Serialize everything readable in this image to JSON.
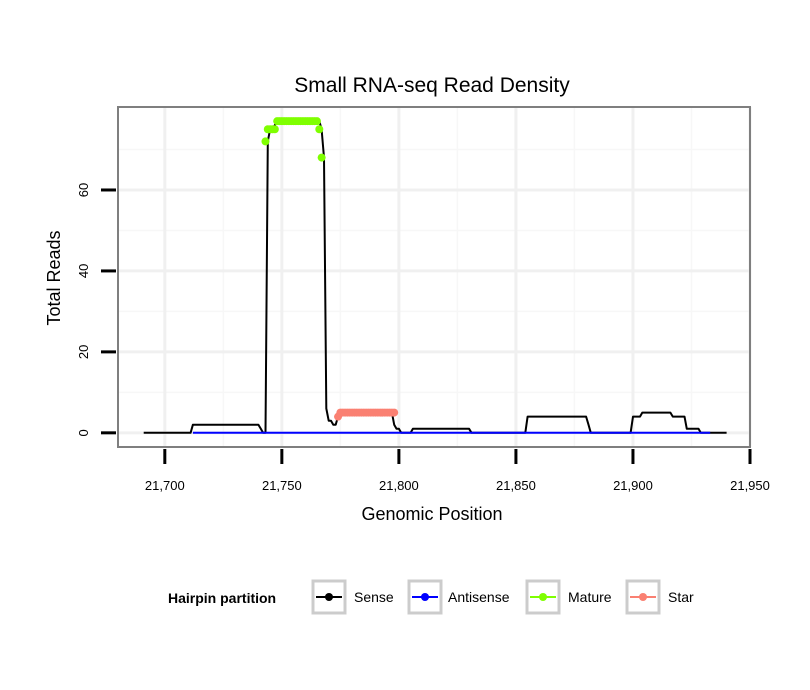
{
  "chart_data": {
    "type": "line",
    "title": "Small RNA-seq Read Density",
    "xlabel": "Genomic Position",
    "ylabel": "Total Reads",
    "xlim": [
      21680,
      21950
    ],
    "ylim": [
      -3.5,
      80.5
    ],
    "x_ticks": [
      21700,
      21750,
      21800,
      21850,
      21900,
      21950
    ],
    "x_tick_labels": [
      "21,700",
      "21,750",
      "21,800",
      "21,850",
      "21,900",
      "21,950"
    ],
    "y_ticks": [
      0,
      20,
      40,
      60
    ],
    "y_tick_labels": [
      "0",
      "20",
      "40",
      "60"
    ],
    "grid": true,
    "legend": {
      "title": "Hairpin partition",
      "placement": "bottom",
      "entries": [
        {
          "name": "Sense",
          "color": "#000000"
        },
        {
          "name": "Antisense",
          "color": "#0000ff"
        },
        {
          "name": "Mature",
          "color": "#7fff00"
        },
        {
          "name": "Star",
          "color": "#fa8072"
        }
      ]
    },
    "series": [
      {
        "name": "Sense",
        "color": "#000000",
        "mode": "line",
        "x": [
          21691,
          21711,
          21712,
          21740,
          21741,
          21742,
          21743,
          21744,
          21745,
          21746,
          21747,
          21748,
          21766,
          21767,
          21768,
          21769,
          21770,
          21771,
          21772,
          21773,
          21774,
          21775,
          21797,
          21798,
          21799,
          21800,
          21801,
          21805,
          21806,
          21830,
          21831,
          21854,
          21855,
          21880,
          21881,
          21882,
          21899,
          21900,
          21903,
          21904,
          21916,
          21917,
          21922,
          21923,
          21928,
          21929,
          21940
        ],
        "y": [
          0,
          0,
          2,
          2,
          1,
          0,
          0,
          72,
          75,
          75,
          76,
          77,
          77,
          75,
          68,
          6,
          3,
          3,
          2,
          2,
          4,
          5,
          5,
          2,
          1,
          1,
          0,
          0,
          1,
          1,
          0,
          0,
          4,
          4,
          2,
          0,
          0,
          4,
          4,
          5,
          5,
          4,
          4,
          1,
          1,
          0,
          0
        ]
      },
      {
        "name": "Antisense",
        "color": "#0000ff",
        "mode": "line",
        "x": [
          21712,
          21933
        ],
        "y": [
          0,
          0
        ]
      },
      {
        "name": "Mature",
        "color": "#7fff00",
        "mode": "markers",
        "x": [
          21743,
          21744,
          21745,
          21746,
          21747,
          21748,
          21749,
          21750,
          21751,
          21752,
          21753,
          21754,
          21755,
          21756,
          21757,
          21758,
          21759,
          21760,
          21761,
          21762,
          21763,
          21764,
          21765,
          21766,
          21767
        ],
        "y": [
          72,
          75,
          75,
          75,
          75,
          77,
          77,
          77,
          77,
          77,
          77,
          77,
          77,
          77,
          77,
          77,
          77,
          77,
          77,
          77,
          77,
          77,
          77,
          75,
          68
        ]
      },
      {
        "name": "Star",
        "color": "#fa8072",
        "mode": "markers",
        "x": [
          21774,
          21775,
          21776,
          21777,
          21778,
          21779,
          21780,
          21781,
          21782,
          21783,
          21784,
          21785,
          21786,
          21787,
          21788,
          21789,
          21790,
          21791,
          21792,
          21793,
          21794,
          21795,
          21796,
          21797,
          21798
        ],
        "y": [
          4,
          5,
          5,
          5,
          5,
          5,
          5,
          5,
          5,
          5,
          5,
          5,
          5,
          5,
          5,
          5,
          5,
          5,
          5,
          5,
          5,
          5,
          5,
          5,
          5
        ]
      }
    ]
  }
}
